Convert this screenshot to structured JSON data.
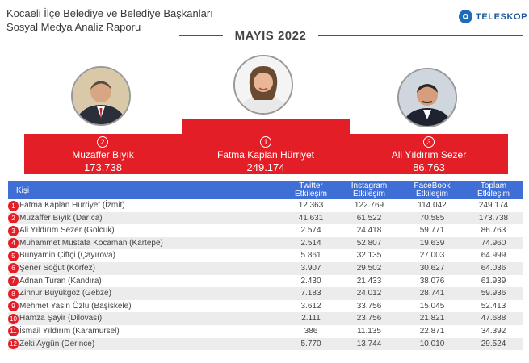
{
  "header": {
    "title_line1": "Kocaeli İlçe Belediye ve Belediye Başkanları",
    "title_line2": "Sosyal Medya Analiz Raporu",
    "logo_text": "TELESKOP",
    "month": "MAYIS 2022"
  },
  "podium": {
    "first": {
      "rank": "1",
      "name": "Fatma Kaplan Hürriyet",
      "score": "249.174"
    },
    "second": {
      "rank": "2",
      "name": "Muzaffer Bıyık",
      "score": "173.738"
    },
    "third": {
      "rank": "3",
      "name": "Ali Yıldırım Sezer",
      "score": "86.763"
    }
  },
  "table": {
    "columns": {
      "kisi": "Kişi",
      "twitter_1": "Twitter",
      "twitter_2": "Etkileşim",
      "instagram_1": "Instagram",
      "instagram_2": "Etkileşim",
      "facebook_1": "FaceBook",
      "facebook_2": "Etkileşim",
      "toplam_1": "Toplam",
      "toplam_2": "Etkileşim"
    },
    "rows": [
      {
        "rank": "1",
        "name": "Fatma Kaplan Hürriyet (İzmit)",
        "twitter": "12.363",
        "instagram": "122.769",
        "facebook": "114.042",
        "total": "249.174"
      },
      {
        "rank": "2",
        "name": "Muzaffer Bıyık (Darıca)",
        "twitter": "41.631",
        "instagram": "61.522",
        "facebook": "70.585",
        "total": "173.738"
      },
      {
        "rank": "3",
        "name": "Ali Yıldırım Sezer (Gölcük)",
        "twitter": "2.574",
        "instagram": "24.418",
        "facebook": "59.771",
        "total": "86.763"
      },
      {
        "rank": "4",
        "name": "Muhammet Mustafa Kocaman (Kartepe)",
        "twitter": "2.514",
        "instagram": "52.807",
        "facebook": "19.639",
        "total": "74.960"
      },
      {
        "rank": "5",
        "name": "Bünyamin Çiftçi (Çayırova)",
        "twitter": "5.861",
        "instagram": "32.135",
        "facebook": "27.003",
        "total": "64.999"
      },
      {
        "rank": "6",
        "name": "Şener Söğüt (Körfez)",
        "twitter": "3.907",
        "instagram": "29.502",
        "facebook": "30.627",
        "total": "64.036"
      },
      {
        "rank": "7",
        "name": "Adnan Turan (Kandıra)",
        "twitter": "2.430",
        "instagram": "21.433",
        "facebook": "38.076",
        "total": "61.939"
      },
      {
        "rank": "8",
        "name": "Zinnur Büyükgöz (Gebze)",
        "twitter": "7.183",
        "instagram": "24.012",
        "facebook": "28.741",
        "total": "59.936"
      },
      {
        "rank": "9",
        "name": "Mehmet Yasin Özlü (Başiskele)",
        "twitter": "3.612",
        "instagram": "33.756",
        "facebook": "15.045",
        "total": "52.413"
      },
      {
        "rank": "10",
        "name": "Hamza Şayir (Dilovası)",
        "twitter": "2.111",
        "instagram": "23.756",
        "facebook": "21.821",
        "total": "47.688"
      },
      {
        "rank": "11",
        "name": "İsmail Yıldırım (Karamürsel)",
        "twitter": "386",
        "instagram": "11.135",
        "facebook": "22.871",
        "total": "34.392"
      },
      {
        "rank": "12",
        "name": "Zeki Aygün (Derince)",
        "twitter": "5.770",
        "instagram": "13.744",
        "facebook": "10.010",
        "total": "29.524"
      }
    ]
  }
}
